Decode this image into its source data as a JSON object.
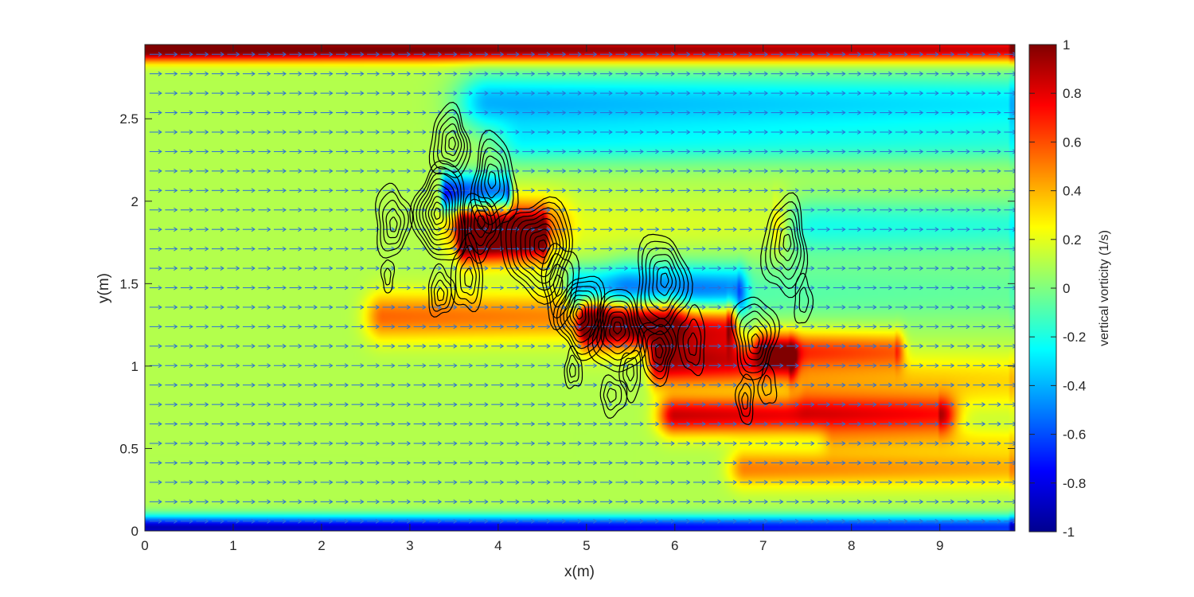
{
  "chart_data": {
    "type": "heatmap",
    "title": "",
    "xlabel": "x(m)",
    "ylabel": "y(m)",
    "xlim": [
      0,
      9.85
    ],
    "ylim": [
      0,
      2.95
    ],
    "x_ticks": [
      "0",
      "1",
      "2",
      "3",
      "4",
      "5",
      "6",
      "7",
      "8",
      "9"
    ],
    "y_ticks": [
      "0",
      "0.5",
      "1",
      "1.5",
      "2",
      "2.5"
    ],
    "colormap": "jet",
    "background_value": 0.1,
    "colorbar": {
      "label": "vertical vorticity (1/s)",
      "range": [
        -1,
        1
      ],
      "ticks": [
        "1",
        "0.8",
        "0.6",
        "0.4",
        "0.2",
        "0",
        "-0.2",
        "-0.4",
        "-0.6",
        "-0.8",
        "-1"
      ]
    },
    "overlays": [
      "velocity quiver (uniform flow in +x)",
      "black density contours"
    ],
    "vorticity_features": [
      {
        "x": 0.0,
        "y": 2.92,
        "len_x": 9.8,
        "sigma_y": 0.05,
        "value": 1.0
      },
      {
        "x": 0.0,
        "y": 0.02,
        "len_x": 9.8,
        "sigma_y": 0.05,
        "value": -1.0
      },
      {
        "x": 3.6,
        "y": 1.78,
        "len_x": 0.9,
        "sigma_y": 0.1,
        "value": 1.0
      },
      {
        "x": 3.4,
        "y": 2.05,
        "len_x": 0.7,
        "sigma_y": 0.08,
        "value": -0.9
      },
      {
        "x": 3.9,
        "y": 2.6,
        "len_x": 5.9,
        "sigma_y": 0.12,
        "value": -0.5
      },
      {
        "x": 4.3,
        "y": 2.35,
        "len_x": 5.5,
        "sigma_y": 0.1,
        "value": -0.3
      },
      {
        "x": 3.6,
        "y": 1.85,
        "len_x": 3.5,
        "sigma_y": 0.12,
        "value": 0.5
      },
      {
        "x": 2.7,
        "y": 1.3,
        "len_x": 3.2,
        "sigma_y": 0.1,
        "value": 0.45
      },
      {
        "x": 5.0,
        "y": 1.85,
        "len_x": 4.8,
        "sigma_y": 0.12,
        "value": -0.35
      },
      {
        "x": 4.9,
        "y": 1.45,
        "len_x": 1.8,
        "sigma_y": 0.1,
        "value": -0.6
      },
      {
        "x": 5.0,
        "y": 1.25,
        "len_x": 1.6,
        "sigma_y": 0.1,
        "value": 0.95
      },
      {
        "x": 5.8,
        "y": 1.02,
        "len_x": 1.5,
        "sigma_y": 0.1,
        "value": 0.8
      },
      {
        "x": 7.0,
        "y": 1.1,
        "len_x": 1.5,
        "sigma_y": 0.08,
        "value": 0.55
      },
      {
        "x": 5.5,
        "y": 1.45,
        "len_x": 4.3,
        "sigma_y": 0.15,
        "value": -0.2
      },
      {
        "x": 6.0,
        "y": 0.7,
        "len_x": 3.0,
        "sigma_y": 0.08,
        "value": 0.75
      },
      {
        "x": 7.5,
        "y": 0.9,
        "len_x": 2.3,
        "sigma_y": 0.12,
        "value": 0.3
      },
      {
        "x": 6.8,
        "y": 0.38,
        "len_x": 3.0,
        "sigma_y": 0.08,
        "value": 0.4
      },
      {
        "x": 7.8,
        "y": 0.55,
        "len_x": 2.0,
        "sigma_y": 0.06,
        "value": 0.2
      }
    ],
    "contour_clusters": [
      {
        "x": 3.45,
        "y": 2.35,
        "rx": 0.22,
        "ry": 0.22,
        "rings": 6
      },
      {
        "x": 2.8,
        "y": 1.88,
        "rx": 0.2,
        "ry": 0.22,
        "rings": 5
      },
      {
        "x": 2.75,
        "y": 1.55,
        "rx": 0.07,
        "ry": 0.1,
        "rings": 2
      },
      {
        "x": 3.35,
        "y": 1.93,
        "rx": 0.3,
        "ry": 0.3,
        "rings": 9
      },
      {
        "x": 3.95,
        "y": 2.1,
        "rx": 0.25,
        "ry": 0.3,
        "rings": 6
      },
      {
        "x": 3.8,
        "y": 1.85,
        "rx": 0.2,
        "ry": 0.2,
        "rings": 5
      },
      {
        "x": 4.45,
        "y": 1.72,
        "rx": 0.4,
        "ry": 0.3,
        "rings": 9
      },
      {
        "x": 3.65,
        "y": 1.55,
        "rx": 0.18,
        "ry": 0.22,
        "rings": 4
      },
      {
        "x": 3.35,
        "y": 1.45,
        "rx": 0.15,
        "ry": 0.15,
        "rings": 4
      },
      {
        "x": 4.7,
        "y": 1.5,
        "rx": 0.2,
        "ry": 0.25,
        "rings": 4
      },
      {
        "x": 4.95,
        "y": 1.3,
        "rx": 0.28,
        "ry": 0.25,
        "rings": 8
      },
      {
        "x": 5.35,
        "y": 1.2,
        "rx": 0.3,
        "ry": 0.25,
        "rings": 7
      },
      {
        "x": 5.85,
        "y": 1.5,
        "rx": 0.3,
        "ry": 0.3,
        "rings": 7
      },
      {
        "x": 5.8,
        "y": 1.1,
        "rx": 0.2,
        "ry": 0.2,
        "rings": 5
      },
      {
        "x": 6.2,
        "y": 1.15,
        "rx": 0.15,
        "ry": 0.2,
        "rings": 3
      },
      {
        "x": 4.85,
        "y": 0.98,
        "rx": 0.1,
        "ry": 0.12,
        "rings": 3
      },
      {
        "x": 5.3,
        "y": 0.82,
        "rx": 0.15,
        "ry": 0.12,
        "rings": 3
      },
      {
        "x": 5.5,
        "y": 0.95,
        "rx": 0.12,
        "ry": 0.15,
        "rings": 3
      },
      {
        "x": 7.25,
        "y": 1.72,
        "rx": 0.25,
        "ry": 0.3,
        "rings": 6
      },
      {
        "x": 7.45,
        "y": 1.4,
        "rx": 0.1,
        "ry": 0.15,
        "rings": 2
      },
      {
        "x": 6.9,
        "y": 1.18,
        "rx": 0.25,
        "ry": 0.25,
        "rings": 6
      },
      {
        "x": 6.8,
        "y": 0.8,
        "rx": 0.1,
        "ry": 0.15,
        "rings": 3
      },
      {
        "x": 7.05,
        "y": 0.88,
        "rx": 0.1,
        "ry": 0.12,
        "rings": 2
      }
    ]
  }
}
